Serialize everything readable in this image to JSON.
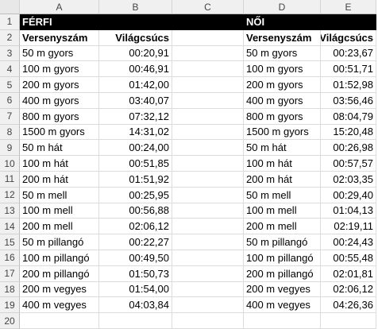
{
  "columns": [
    "A",
    "B",
    "C",
    "D",
    "E"
  ],
  "rows": [
    "1",
    "2",
    "3",
    "4",
    "5",
    "6",
    "7",
    "8",
    "9",
    "10",
    "11",
    "12",
    "13",
    "14",
    "15",
    "16",
    "17",
    "18",
    "19",
    "20"
  ],
  "men": {
    "title": "FÉRFI",
    "event_header": "Versenyszám",
    "record_header": "Világcsúcs",
    "events": [
      {
        "name": "50 m gyors",
        "time": "00:20,91"
      },
      {
        "name": "100 m gyors",
        "time": "00:46,91"
      },
      {
        "name": "200 m gyors",
        "time": "01:42,00"
      },
      {
        "name": "400 m gyors",
        "time": "03:40,07"
      },
      {
        "name": "800 m gyors",
        "time": "07:32,12"
      },
      {
        "name": "1500 m gyors",
        "time": "14:31,02"
      },
      {
        "name": "50 m hát",
        "time": "00:24,00"
      },
      {
        "name": "100 m hát",
        "time": "00:51,85"
      },
      {
        "name": "200 m hát",
        "time": "01:51,92"
      },
      {
        "name": "50 m mell",
        "time": "00:25,95"
      },
      {
        "name": "100 m mell",
        "time": "00:56,88"
      },
      {
        "name": "200 m mell",
        "time": "02:06,12"
      },
      {
        "name": "50 m pillangó",
        "time": "00:22,27"
      },
      {
        "name": "100 m pillangó",
        "time": "00:49,50"
      },
      {
        "name": "200 m pillangó",
        "time": "01:50,73"
      },
      {
        "name": "200 m vegyes",
        "time": "01:54,00"
      },
      {
        "name": "400 m vegyes",
        "time": "04:03,84"
      }
    ]
  },
  "women": {
    "title": "NŐI",
    "event_header": "Versenyszám",
    "record_header": "Világcsúcs",
    "events": [
      {
        "name": "50 m gyors",
        "time": "00:23,67"
      },
      {
        "name": "100 m gyors",
        "time": "00:51,71"
      },
      {
        "name": "200 m gyors",
        "time": "01:52,98"
      },
      {
        "name": "400 m gyors",
        "time": "03:56,46"
      },
      {
        "name": "800 m gyors",
        "time": "08:04,79"
      },
      {
        "name": "1500 m gyors",
        "time": "15:20,48"
      },
      {
        "name": "50 m hát",
        "time": "00:26,98"
      },
      {
        "name": "100 m hát",
        "time": "00:57,57"
      },
      {
        "name": "200 m hát",
        "time": "02:03,35"
      },
      {
        "name": "50 m mell",
        "time": "00:29,40"
      },
      {
        "name": "100 m mell",
        "time": "01:04,13"
      },
      {
        "name": "200 m mell",
        "time": "02:19,11"
      },
      {
        "name": "50 m pillangó",
        "time": "00:24,43"
      },
      {
        "name": "100 m pillangó",
        "time": "00:55,48"
      },
      {
        "name": "200 m pillangó",
        "time": "02:01,81"
      },
      {
        "name": "200 m vegyes",
        "time": "02:06,12"
      },
      {
        "name": "400 m vegyes",
        "time": "04:26,36"
      }
    ]
  }
}
